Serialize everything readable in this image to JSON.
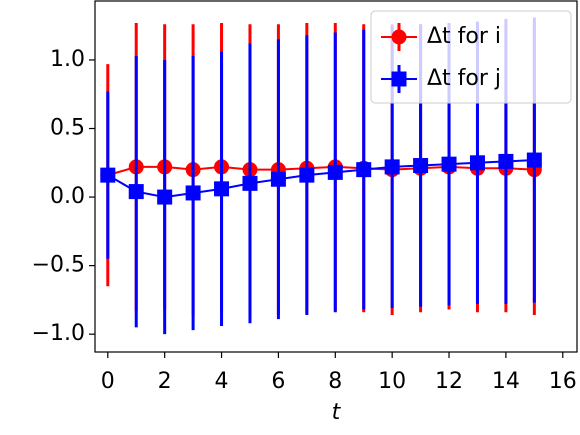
{
  "chart_data": {
    "type": "errorbar-line",
    "xlabel": "t",
    "x": [
      0,
      1,
      2,
      3,
      4,
      5,
      6,
      7,
      8,
      9,
      10,
      11,
      12,
      13,
      14,
      15
    ],
    "series": [
      {
        "name": "Δt for i",
        "color": "#ff0000",
        "marker": "circle",
        "values": [
          0.16,
          0.22,
          0.22,
          0.2,
          0.22,
          0.2,
          0.2,
          0.21,
          0.22,
          0.21,
          0.2,
          0.21,
          0.22,
          0.21,
          0.21,
          0.2
        ],
        "errors": [
          0.81,
          1.05,
          1.04,
          1.06,
          1.05,
          1.06,
          1.06,
          1.06,
          1.05,
          1.05,
          1.06,
          1.05,
          1.04,
          1.05,
          1.05,
          1.06
        ]
      },
      {
        "name": "Δt for j",
        "color": "#0000ff",
        "marker": "square",
        "values": [
          0.16,
          0.04,
          0.0,
          0.03,
          0.06,
          0.1,
          0.13,
          0.16,
          0.18,
          0.2,
          0.22,
          0.23,
          0.24,
          0.25,
          0.26,
          0.27
        ],
        "errors": [
          0.61,
          0.99,
          1.0,
          1.0,
          1.0,
          1.02,
          1.02,
          1.02,
          1.02,
          1.02,
          1.03,
          1.03,
          1.03,
          1.03,
          1.04,
          1.04
        ]
      }
    ],
    "xlim": [
      -0.45,
      16.5
    ],
    "ylim": [
      -1.13,
      1.43
    ],
    "xticks": [
      0,
      2,
      4,
      6,
      8,
      10,
      12,
      14,
      16
    ],
    "yticks": [
      {
        "value": -1,
        "label": "−1.0"
      },
      {
        "value": -0.5,
        "label": "−0.5"
      },
      {
        "value": 0,
        "label": "0.0"
      },
      0.5,
      {
        "value": 1,
        "label": "1.0"
      }
    ],
    "legend": "upper right"
  }
}
